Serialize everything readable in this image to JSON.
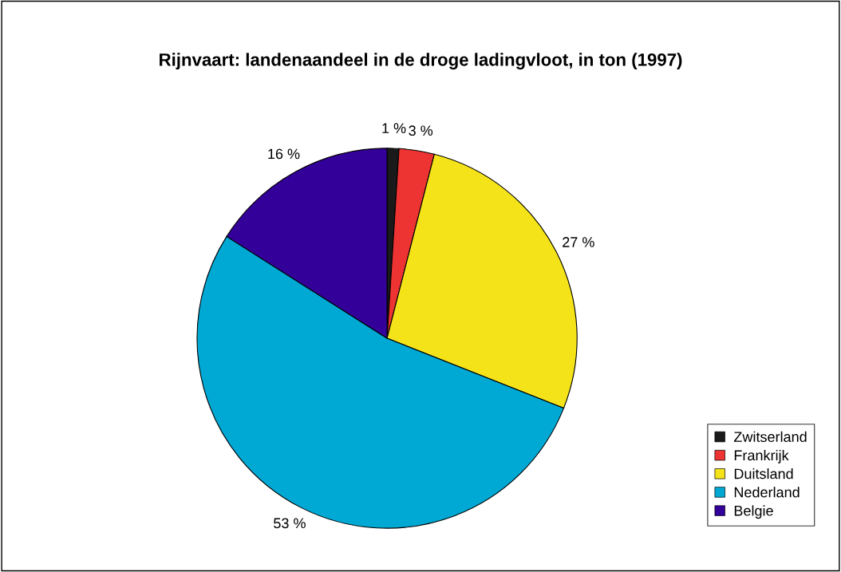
{
  "chart_data": {
    "type": "pie",
    "title": "Rijnvaart: landenaandeel in de droge ladingvloot, in ton (1997)",
    "categories": [
      "Zwitserland",
      "Frankrijk",
      "Duitsland",
      "Nederland",
      "Belgie"
    ],
    "values": [
      1,
      3,
      27,
      53,
      16
    ],
    "colors": [
      "#1a1a1a",
      "#ee3333",
      "#f5e31a",
      "#00a8d4",
      "#330099"
    ],
    "value_labels": [
      "1 %",
      "3 %",
      "27 %",
      "53 %",
      "16 %"
    ],
    "legend": "bottom right"
  }
}
